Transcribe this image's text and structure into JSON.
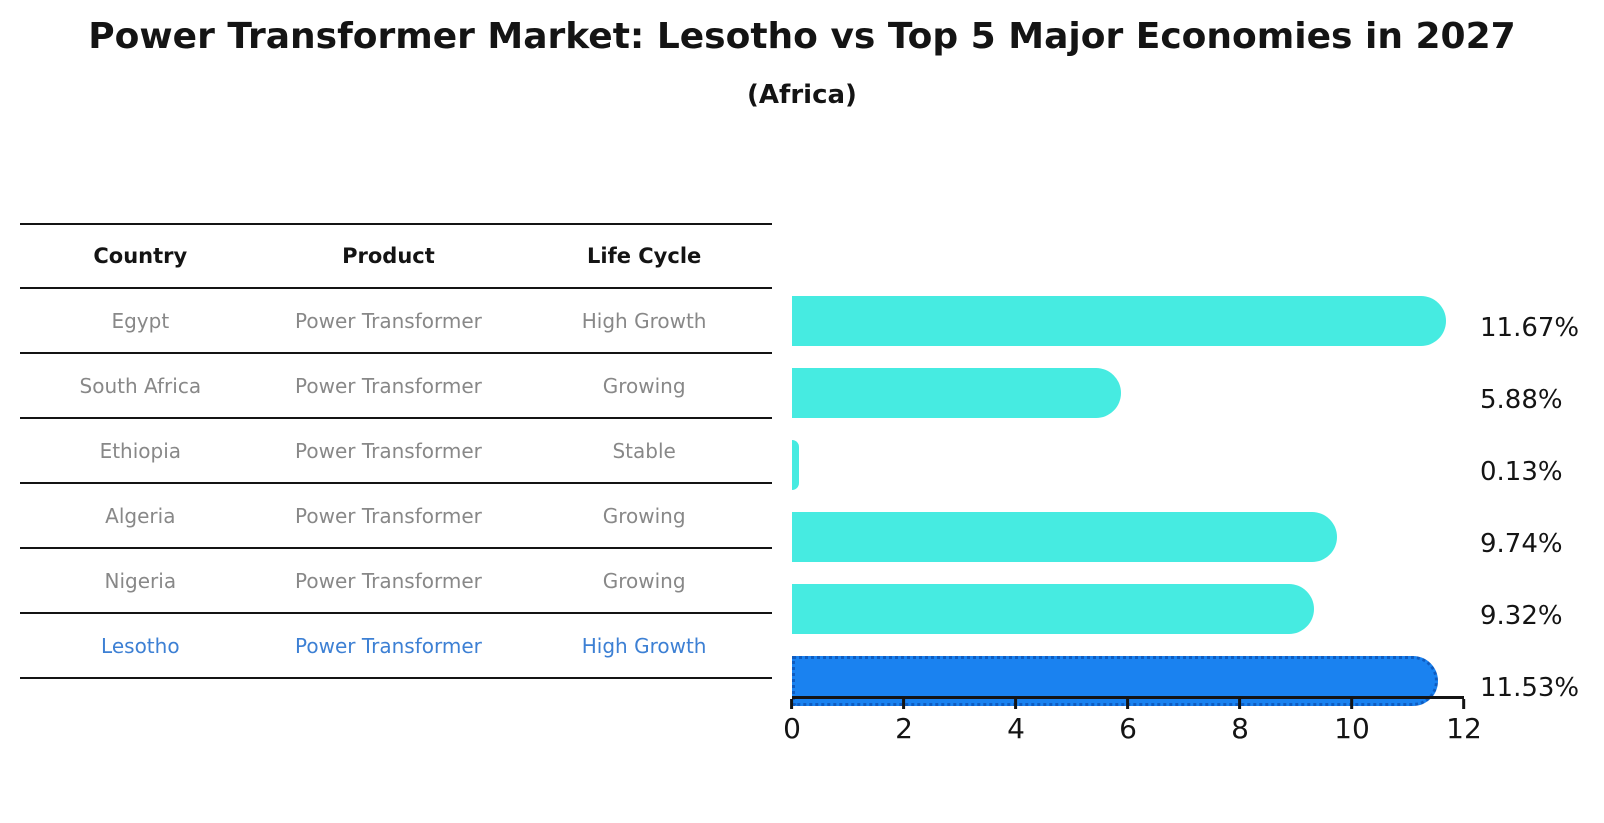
{
  "title": "Power Transformer Market: Lesotho vs Top 5 Major Economies in 2027",
  "subtitle": "(Africa)",
  "table": {
    "headers": [
      "Country",
      "Product",
      "Life Cycle"
    ],
    "rows": [
      {
        "country": "Egypt",
        "product": "Power Transformer",
        "life_cycle": "High Growth",
        "highlight": false
      },
      {
        "country": "South Africa",
        "product": "Power Transformer",
        "life_cycle": "Growing",
        "highlight": false
      },
      {
        "country": "Ethiopia",
        "product": "Power Transformer",
        "life_cycle": "Stable",
        "highlight": false
      },
      {
        "country": "Algeria",
        "product": "Power Transformer",
        "life_cycle": "Growing",
        "highlight": false
      },
      {
        "country": "Nigeria",
        "product": "Power Transformer",
        "life_cycle": "Growing",
        "highlight": false
      },
      {
        "country": "Lesotho",
        "product": "Power Transformer",
        "life_cycle": "High Growth",
        "highlight": true
      }
    ]
  },
  "chart_data": {
    "type": "bar",
    "orientation": "horizontal",
    "title": "Power Transformer Market: Lesotho vs Top 5 Major Economies in 2027",
    "subtitle": "(Africa)",
    "categories": [
      "Egypt",
      "South Africa",
      "Ethiopia",
      "Algeria",
      "Nigeria",
      "Lesotho"
    ],
    "values": [
      11.67,
      5.88,
      0.13,
      9.74,
      9.32,
      11.53
    ],
    "labels": [
      "11.67%",
      "5.88%",
      "0.13%",
      "9.74%",
      "9.32%",
      "11.53%"
    ],
    "xlabel": "",
    "ylabel": "",
    "xlim": [
      0,
      12
    ],
    "x_ticks": [
      0,
      2,
      4,
      6,
      8,
      10,
      12
    ],
    "grid": false,
    "legend": false,
    "highlight_index": 5,
    "bar_color": "#46EBE1",
    "highlight_color": "#1A82F0",
    "highlight_border_color": "#0F5CC0"
  },
  "colors": {
    "text": "#141414",
    "table_text": "#888888",
    "highlight_text": "#3D80D4",
    "bar": "#46EBE1",
    "highlight_bar": "#1A82F0"
  }
}
